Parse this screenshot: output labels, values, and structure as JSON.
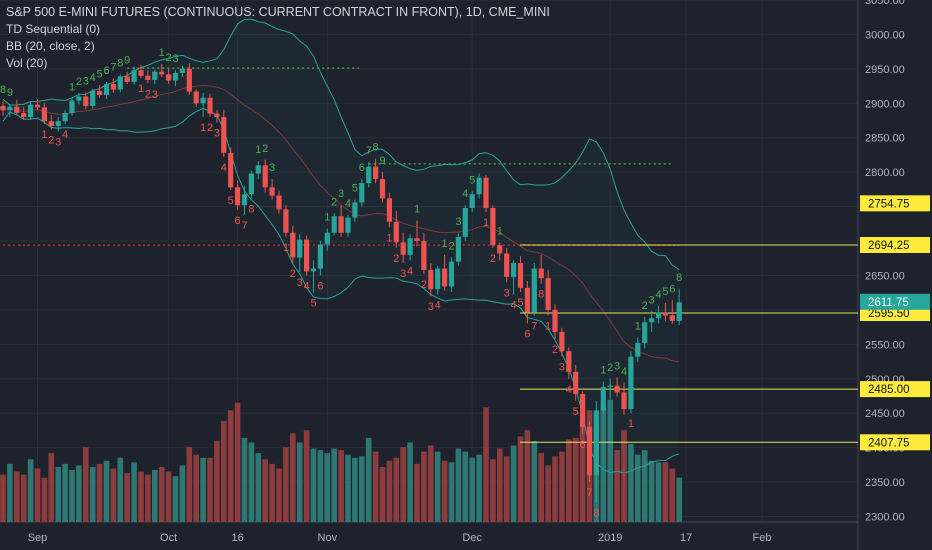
{
  "header": {
    "title": "S&P 500 E-MINI FUTURES (CONTINUOUS: CURRENT CONTRACT IN FRONT), 1D, CME_MINI",
    "indicators": [
      "TD Sequential (0)",
      "BB (20, close, 2)",
      "Vol (20)"
    ]
  },
  "colors": {
    "background": "#1e222d",
    "grid": "#2a2e39",
    "up": "#26a69a",
    "down": "#ef5350",
    "vol_up": "#2e7873",
    "vol_down": "#8c3c3c",
    "bb": "#26a69a",
    "bb_mid": "#7e3b3b",
    "td_up": "#4caf50",
    "td_down": "#ef5350",
    "hline": "#e6e65a",
    "dotted_red": "#c62828",
    "dotted_green": "#43a047",
    "price_tag": "#ffeb3b",
    "last_tag": "#26a69a"
  },
  "chart_data": {
    "type": "candlestick",
    "y_axis_labels": [
      "3050.00",
      "3000.00",
      "2950.00",
      "2900.00",
      "2850.00",
      "2800.00",
      "2750.00",
      "2700.00",
      "2650.00",
      "2600.00",
      "2550.00",
      "2500.00",
      "2450.00",
      "2400.00",
      "2350.00",
      "2300.00"
    ],
    "y_axis_values": [
      3050,
      3000,
      2950,
      2900,
      2850,
      2800,
      2750,
      2700,
      2650,
      2600,
      2550,
      2500,
      2450,
      2400,
      2350,
      2300
    ],
    "ylim": [
      2292,
      3050
    ],
    "x_axis_labels": [
      {
        "label": "Sep",
        "index": 5
      },
      {
        "label": "Oct",
        "index": 24
      },
      {
        "label": "16",
        "index": 34
      },
      {
        "label": "Nov",
        "index": 47
      },
      {
        "label": "Dec",
        "index": 68
      },
      {
        "label": "2019",
        "index": 88
      },
      {
        "label": "17",
        "index": 99
      },
      {
        "label": "Feb",
        "index": 110
      }
    ],
    "price_levels": [
      {
        "label": "2754.75",
        "value": 2754.75,
        "line": false
      },
      {
        "label": "2694.25",
        "value": 2694.25,
        "line": true
      },
      {
        "label": "2595.50",
        "value": 2595.5,
        "line": true
      },
      {
        "label": "2485.00",
        "value": 2485,
        "line": true
      },
      {
        "label": "2407.75",
        "value": 2407.75,
        "line": true
      }
    ],
    "last_price": {
      "label": "2611.75",
      "value": 2611.75
    },
    "dotted_levels": [
      {
        "value": 2694,
        "from": 0,
        "to": 98,
        "color": "red"
      },
      {
        "value": 2951,
        "from": 18,
        "to": 52,
        "color": "green"
      },
      {
        "value": 2812,
        "from": 53,
        "to": 97,
        "color": "green"
      }
    ],
    "ohlc": [
      [
        2896,
        2903,
        2882,
        2890
      ],
      [
        2890,
        2899,
        2880,
        2895
      ],
      [
        2895,
        2905,
        2884,
        2886
      ],
      [
        2886,
        2895,
        2876,
        2880
      ],
      [
        2880,
        2902,
        2876,
        2898
      ],
      [
        2898,
        2906,
        2890,
        2894
      ],
      [
        2894,
        2900,
        2870,
        2874
      ],
      [
        2874,
        2883,
        2862,
        2867
      ],
      [
        2867,
        2880,
        2859,
        2874
      ],
      [
        2874,
        2890,
        2870,
        2886
      ],
      [
        2886,
        2907,
        2882,
        2904
      ],
      [
        2904,
        2915,
        2898,
        2910
      ],
      [
        2910,
        2916,
        2891,
        2896
      ],
      [
        2896,
        2921,
        2892,
        2918
      ],
      [
        2918,
        2926,
        2908,
        2912
      ],
      [
        2912,
        2931,
        2906,
        2928
      ],
      [
        2928,
        2936,
        2915,
        2920
      ],
      [
        2920,
        2942,
        2916,
        2939
      ],
      [
        2939,
        2946,
        2928,
        2931
      ],
      [
        2931,
        2953,
        2927,
        2948
      ],
      [
        2948,
        2956,
        2937,
        2940
      ],
      [
        2940,
        2948,
        2929,
        2934
      ],
      [
        2934,
        2949,
        2928,
        2946
      ],
      [
        2946,
        2957,
        2938,
        2942
      ],
      [
        2942,
        2950,
        2928,
        2933
      ],
      [
        2933,
        2948,
        2925,
        2944
      ],
      [
        2944,
        2955,
        2938,
        2950
      ],
      [
        2950,
        2958,
        2912,
        2917
      ],
      [
        2917,
        2920,
        2895,
        2900
      ],
      [
        2900,
        2915,
        2880,
        2908
      ],
      [
        2908,
        2914,
        2880,
        2885
      ],
      [
        2885,
        2890,
        2872,
        2880
      ],
      [
        2880,
        2890,
        2822,
        2828
      ],
      [
        2828,
        2836,
        2774,
        2778
      ],
      [
        2778,
        2788,
        2745,
        2752
      ],
      [
        2752,
        2780,
        2738,
        2768
      ],
      [
        2768,
        2802,
        2762,
        2798
      ],
      [
        2798,
        2816,
        2790,
        2810
      ],
      [
        2810,
        2818,
        2770,
        2778
      ],
      [
        2778,
        2790,
        2760,
        2766
      ],
      [
        2766,
        2773,
        2740,
        2746
      ],
      [
        2746,
        2752,
        2706,
        2712
      ],
      [
        2712,
        2722,
        2668,
        2676
      ],
      [
        2676,
        2710,
        2655,
        2702
      ],
      [
        2702,
        2708,
        2650,
        2656
      ],
      [
        2656,
        2672,
        2625,
        2660
      ],
      [
        2660,
        2700,
        2650,
        2695
      ],
      [
        2695,
        2718,
        2686,
        2712
      ],
      [
        2712,
        2740,
        2708,
        2736
      ],
      [
        2736,
        2752,
        2706,
        2712
      ],
      [
        2712,
        2738,
        2706,
        2734
      ],
      [
        2734,
        2760,
        2728,
        2756
      ],
      [
        2756,
        2790,
        2750,
        2784
      ],
      [
        2784,
        2815,
        2778,
        2808
      ],
      [
        2808,
        2820,
        2784,
        2790
      ],
      [
        2790,
        2800,
        2756,
        2762
      ],
      [
        2762,
        2770,
        2720,
        2728
      ],
      [
        2728,
        2744,
        2690,
        2698
      ],
      [
        2698,
        2712,
        2668,
        2680
      ],
      [
        2680,
        2710,
        2672,
        2704
      ],
      [
        2704,
        2730,
        2692,
        2700
      ],
      [
        2700,
        2712,
        2652,
        2658
      ],
      [
        2658,
        2668,
        2620,
        2630
      ],
      [
        2630,
        2664,
        2622,
        2660
      ],
      [
        2660,
        2680,
        2628,
        2634
      ],
      [
        2634,
        2676,
        2626,
        2670
      ],
      [
        2670,
        2712,
        2664,
        2706
      ],
      [
        2706,
        2752,
        2700,
        2748
      ],
      [
        2748,
        2772,
        2742,
        2768
      ],
      [
        2768,
        2798,
        2762,
        2792
      ],
      [
        2792,
        2796,
        2742,
        2748
      ],
      [
        2748,
        2752,
        2690,
        2694
      ],
      [
        2694,
        2698,
        2672,
        2682
      ],
      [
        2682,
        2690,
        2640,
        2648
      ],
      [
        2648,
        2672,
        2622,
        2668
      ],
      [
        2668,
        2678,
        2626,
        2632
      ],
      [
        2632,
        2642,
        2580,
        2596
      ],
      [
        2596,
        2668,
        2592,
        2660
      ],
      [
        2660,
        2680,
        2638,
        2646
      ],
      [
        2646,
        2658,
        2592,
        2600
      ],
      [
        2600,
        2608,
        2558,
        2568
      ],
      [
        2568,
        2574,
        2532,
        2540
      ],
      [
        2540,
        2546,
        2500,
        2510
      ],
      [
        2510,
        2520,
        2468,
        2478
      ],
      [
        2478,
        2482,
        2420,
        2430
      ],
      [
        2430,
        2438,
        2350,
        2360
      ],
      [
        2360,
        2468,
        2320,
        2454
      ],
      [
        2454,
        2496,
        2450,
        2488
      ],
      [
        2488,
        2500,
        2470,
        2490
      ],
      [
        2490,
        2502,
        2474,
        2480
      ],
      [
        2480,
        2494,
        2448,
        2456
      ],
      [
        2456,
        2540,
        2450,
        2532
      ],
      [
        2532,
        2560,
        2524,
        2552
      ],
      [
        2552,
        2590,
        2544,
        2582
      ],
      [
        2582,
        2598,
        2568,
        2588
      ],
      [
        2588,
        2606,
        2580,
        2596
      ],
      [
        2596,
        2610,
        2584,
        2592
      ],
      [
        2592,
        2614,
        2580,
        2584
      ],
      [
        2584,
        2630,
        2578,
        2611
      ]
    ],
    "volume": [
      62,
      76,
      66,
      62,
      82,
      70,
      58,
      90,
      72,
      76,
      68,
      74,
      98,
      72,
      76,
      80,
      70,
      84,
      64,
      78,
      66,
      62,
      68,
      72,
      66,
      60,
      74,
      98,
      88,
      84,
      84,
      106,
      132,
      146,
      156,
      110,
      104,
      90,
      82,
      76,
      70,
      98,
      116,
      104,
      120,
      96,
      94,
      90,
      96,
      94,
      88,
      84,
      86,
      110,
      92,
      72,
      80,
      84,
      98,
      104,
      76,
      92,
      100,
      92,
      80,
      78,
      96,
      92,
      84,
      88,
      150,
      82,
      96,
      86,
      100,
      112,
      120,
      106,
      90,
      74,
      86,
      92,
      108,
      110,
      132,
      146,
      142,
      150,
      160,
      94,
      120,
      102,
      88,
      94,
      80,
      78,
      78,
      70,
      58
    ],
    "volume_max": 170,
    "td_setups": [
      {
        "i": 0,
        "t": "8",
        "c": "up",
        "pos": "above"
      },
      {
        "i": 1,
        "t": "9",
        "c": "up",
        "pos": "above"
      },
      {
        "i": 6,
        "t": "1",
        "c": "down",
        "pos": "below"
      },
      {
        "i": 7,
        "t": "2",
        "c": "down",
        "pos": "below"
      },
      {
        "i": 8,
        "t": "3",
        "c": "down",
        "pos": "below"
      },
      {
        "i": 9,
        "t": "4",
        "c": "down",
        "pos": "below"
      },
      {
        "i": 10,
        "t": "1",
        "c": "up",
        "pos": "above"
      },
      {
        "i": 11,
        "t": "2",
        "c": "up",
        "pos": "above"
      },
      {
        "i": 12,
        "t": "3",
        "c": "up",
        "pos": "above"
      },
      {
        "i": 13,
        "t": "4",
        "c": "up",
        "pos": "above"
      },
      {
        "i": 14,
        "t": "5",
        "c": "up",
        "pos": "above"
      },
      {
        "i": 15,
        "t": "6",
        "c": "up",
        "pos": "above"
      },
      {
        "i": 16,
        "t": "7",
        "c": "up",
        "pos": "above"
      },
      {
        "i": 17,
        "t": "8",
        "c": "up",
        "pos": "above"
      },
      {
        "i": 18,
        "t": "9",
        "c": "up",
        "pos": "above"
      },
      {
        "i": 20,
        "t": "1",
        "c": "down",
        "pos": "below"
      },
      {
        "i": 21,
        "t": "2",
        "c": "down",
        "pos": "below"
      },
      {
        "i": 22,
        "t": "3",
        "c": "down",
        "pos": "below"
      },
      {
        "i": 23,
        "t": "1",
        "c": "up",
        "pos": "above"
      },
      {
        "i": 24,
        "t": "2",
        "c": "up",
        "pos": "above"
      },
      {
        "i": 25,
        "t": "3",
        "c": "up",
        "pos": "above"
      },
      {
        "i": 29,
        "t": "1",
        "c": "down",
        "pos": "below"
      },
      {
        "i": 30,
        "t": "2",
        "c": "down",
        "pos": "below"
      },
      {
        "i": 31,
        "t": "3",
        "c": "down",
        "pos": "below"
      },
      {
        "i": 32,
        "t": "4",
        "c": "down",
        "pos": "below"
      },
      {
        "i": 33,
        "t": "5",
        "c": "down",
        "pos": "below"
      },
      {
        "i": 34,
        "t": "6",
        "c": "down",
        "pos": "below"
      },
      {
        "i": 35,
        "t": "7",
        "c": "down",
        "pos": "below"
      },
      {
        "i": 36,
        "t": "8",
        "c": "down",
        "pos": "below"
      },
      {
        "i": 37,
        "t": "1",
        "c": "up",
        "pos": "above"
      },
      {
        "i": 38,
        "t": "2",
        "c": "up",
        "pos": "above"
      },
      {
        "i": 39,
        "t": "3",
        "c": "up",
        "pos": "above"
      },
      {
        "i": 41,
        "t": "1",
        "c": "down",
        "pos": "below"
      },
      {
        "i": 42,
        "t": "2",
        "c": "down",
        "pos": "below"
      },
      {
        "i": 43,
        "t": "3",
        "c": "down",
        "pos": "below"
      },
      {
        "i": 44,
        "t": "4",
        "c": "down",
        "pos": "below"
      },
      {
        "i": 45,
        "t": "5",
        "c": "down",
        "pos": "below"
      },
      {
        "i": 46,
        "t": "6",
        "c": "down",
        "pos": "below"
      },
      {
        "i": 47,
        "t": "1",
        "c": "up",
        "pos": "above"
      },
      {
        "i": 48,
        "t": "2",
        "c": "up",
        "pos": "above"
      },
      {
        "i": 49,
        "t": "3",
        "c": "up",
        "pos": "above"
      },
      {
        "i": 50,
        "t": "4",
        "c": "up",
        "pos": "above"
      },
      {
        "i": 51,
        "t": "5",
        "c": "up",
        "pos": "above"
      },
      {
        "i": 52,
        "t": "6",
        "c": "up",
        "pos": "above"
      },
      {
        "i": 53,
        "t": "7",
        "c": "up",
        "pos": "above"
      },
      {
        "i": 54,
        "t": "8",
        "c": "up",
        "pos": "above"
      },
      {
        "i": 55,
        "t": "9",
        "c": "up",
        "pos": "above"
      },
      {
        "i": 56,
        "t": "1",
        "c": "down",
        "pos": "below"
      },
      {
        "i": 57,
        "t": "2",
        "c": "down",
        "pos": "below"
      },
      {
        "i": 58,
        "t": "3",
        "c": "down",
        "pos": "below"
      },
      {
        "i": 59,
        "t": "4",
        "c": "down",
        "pos": "below"
      },
      {
        "i": 60,
        "t": "1",
        "c": "up",
        "pos": "above"
      },
      {
        "i": 61,
        "t": "2",
        "c": "down",
        "pos": "below"
      },
      {
        "i": 62,
        "t": "3",
        "c": "down",
        "pos": "below"
      },
      {
        "i": 63,
        "t": "4",
        "c": "down",
        "pos": "below"
      },
      {
        "i": 64,
        "t": "1",
        "c": "up",
        "pos": "above"
      },
      {
        "i": 65,
        "t": "2",
        "c": "up",
        "pos": "above"
      },
      {
        "i": 66,
        "t": "3",
        "c": "up",
        "pos": "above"
      },
      {
        "i": 67,
        "t": "4",
        "c": "up",
        "pos": "above"
      },
      {
        "i": 68,
        "t": "5",
        "c": "up",
        "pos": "above"
      },
      {
        "i": 70,
        "t": "1",
        "c": "down",
        "pos": "below"
      },
      {
        "i": 71,
        "t": "2",
        "c": "down",
        "pos": "below"
      },
      {
        "i": 72,
        "t": "1",
        "c": "up",
        "pos": "above"
      },
      {
        "i": 73,
        "t": "3",
        "c": "down",
        "pos": "below"
      },
      {
        "i": 74,
        "t": "4",
        "c": "down",
        "pos": "below"
      },
      {
        "i": 75,
        "t": "5",
        "c": "down",
        "pos": "below"
      },
      {
        "i": 76,
        "t": "6",
        "c": "down",
        "pos": "below"
      },
      {
        "i": 77,
        "t": "7",
        "c": "down",
        "pos": "below"
      },
      {
        "i": 78,
        "t": "8",
        "c": "down",
        "pos": "below"
      },
      {
        "i": 79,
        "t": "1",
        "c": "down",
        "pos": "below"
      },
      {
        "i": 80,
        "t": "2",
        "c": "down",
        "pos": "below"
      },
      {
        "i": 81,
        "t": "3",
        "c": "down",
        "pos": "below"
      },
      {
        "i": 82,
        "t": "4",
        "c": "down",
        "pos": "below"
      },
      {
        "i": 83,
        "t": "5",
        "c": "down",
        "pos": "below"
      },
      {
        "i": 84,
        "t": "6",
        "c": "down",
        "pos": "below"
      },
      {
        "i": 85,
        "t": "7",
        "c": "down",
        "pos": "below"
      },
      {
        "i": 86,
        "t": "8",
        "c": "down",
        "pos": "below"
      },
      {
        "i": 87,
        "t": "1",
        "c": "up",
        "pos": "above"
      },
      {
        "i": 88,
        "t": "2",
        "c": "up",
        "pos": "above"
      },
      {
        "i": 89,
        "t": "3",
        "c": "up",
        "pos": "above"
      },
      {
        "i": 90,
        "t": "4",
        "c": "up",
        "pos": "above"
      },
      {
        "i": 91,
        "t": "1",
        "c": "down",
        "pos": "below"
      },
      {
        "i": 92,
        "t": "1",
        "c": "up",
        "pos": "above"
      },
      {
        "i": 93,
        "t": "2",
        "c": "up",
        "pos": "above"
      },
      {
        "i": 94,
        "t": "3",
        "c": "up",
        "pos": "above"
      },
      {
        "i": 95,
        "t": "4",
        "c": "up",
        "pos": "above"
      },
      {
        "i": 96,
        "t": "5",
        "c": "up",
        "pos": "above"
      },
      {
        "i": 97,
        "t": "6",
        "c": "up",
        "pos": "above"
      },
      {
        "i": 98,
        "t": "8",
        "c": "up",
        "pos": "above"
      }
    ]
  }
}
